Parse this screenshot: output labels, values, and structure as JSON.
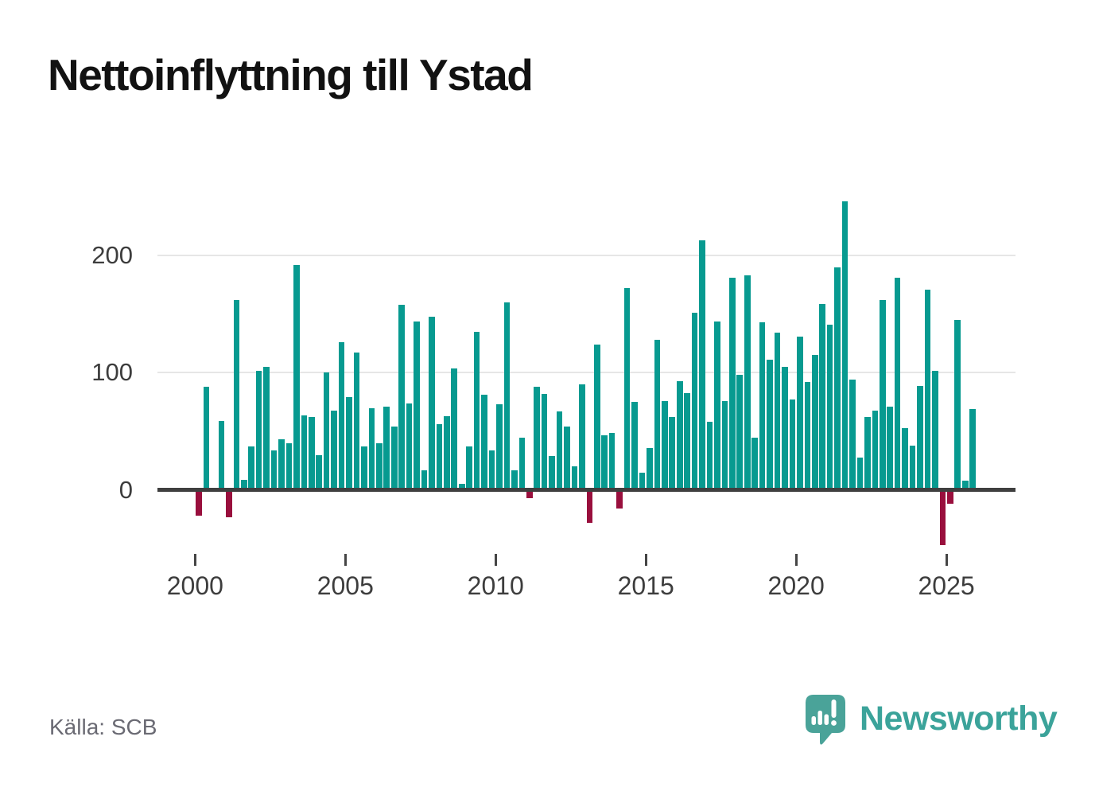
{
  "header": {
    "title": "Nettoinflyttning till Ystad"
  },
  "footer": {
    "source_label": "Källa: SCB",
    "brand_name": "Newsworthy"
  },
  "colors": {
    "positive_bar": "#079a90",
    "negative_bar": "#990f3d",
    "axis_line": "#3f3f3f",
    "gridline": "#e6e6e6",
    "tick_text": "#3d3d3d",
    "title_text": "#121212",
    "source_text": "#6a6a73",
    "brand_teal": "#3ba39a",
    "logo_bubble": "#4aa399"
  },
  "chart_data": {
    "type": "bar",
    "title": "Nettoinflyttning till Ystad",
    "frequency": "quarterly",
    "start": "2000Q1",
    "end": "2025Q4",
    "values": [
      -22,
      88,
      1,
      59,
      -23,
      162,
      9,
      37,
      102,
      105,
      34,
      43,
      40,
      192,
      64,
      62,
      30,
      100,
      68,
      126,
      79,
      117,
      37,
      70,
      40,
      71,
      54,
      158,
      74,
      144,
      17,
      148,
      56,
      63,
      104,
      5,
      37,
      135,
      81,
      34,
      73,
      160,
      17,
      45,
      -7,
      88,
      82,
      29,
      67,
      54,
      20,
      90,
      -28,
      124,
      47,
      49,
      -16,
      172,
      75,
      15,
      36,
      128,
      76,
      62,
      93,
      83,
      151,
      213,
      58,
      144,
      76,
      181,
      98,
      183,
      45,
      143,
      111,
      134,
      105,
      77,
      131,
      92,
      115,
      159,
      141,
      190,
      246,
      94,
      28,
      62,
      68,
      162,
      71,
      181,
      53,
      38,
      89,
      171,
      102,
      -47,
      -12,
      145,
      8,
      69
    ],
    "x_ticks": [
      {
        "label": "2000",
        "year": 2000
      },
      {
        "label": "2005",
        "year": 2005
      },
      {
        "label": "2010",
        "year": 2010
      },
      {
        "label": "2015",
        "year": 2015
      },
      {
        "label": "2020",
        "year": 2020
      },
      {
        "label": "2025",
        "year": 2025
      }
    ],
    "y_ticks": [
      {
        "label": "0",
        "value": 0
      },
      {
        "label": "100",
        "value": 100
      },
      {
        "label": "200",
        "value": 200
      }
    ],
    "ylim": [
      -60,
      260
    ],
    "grid": "horizontal",
    "legend": "none"
  }
}
